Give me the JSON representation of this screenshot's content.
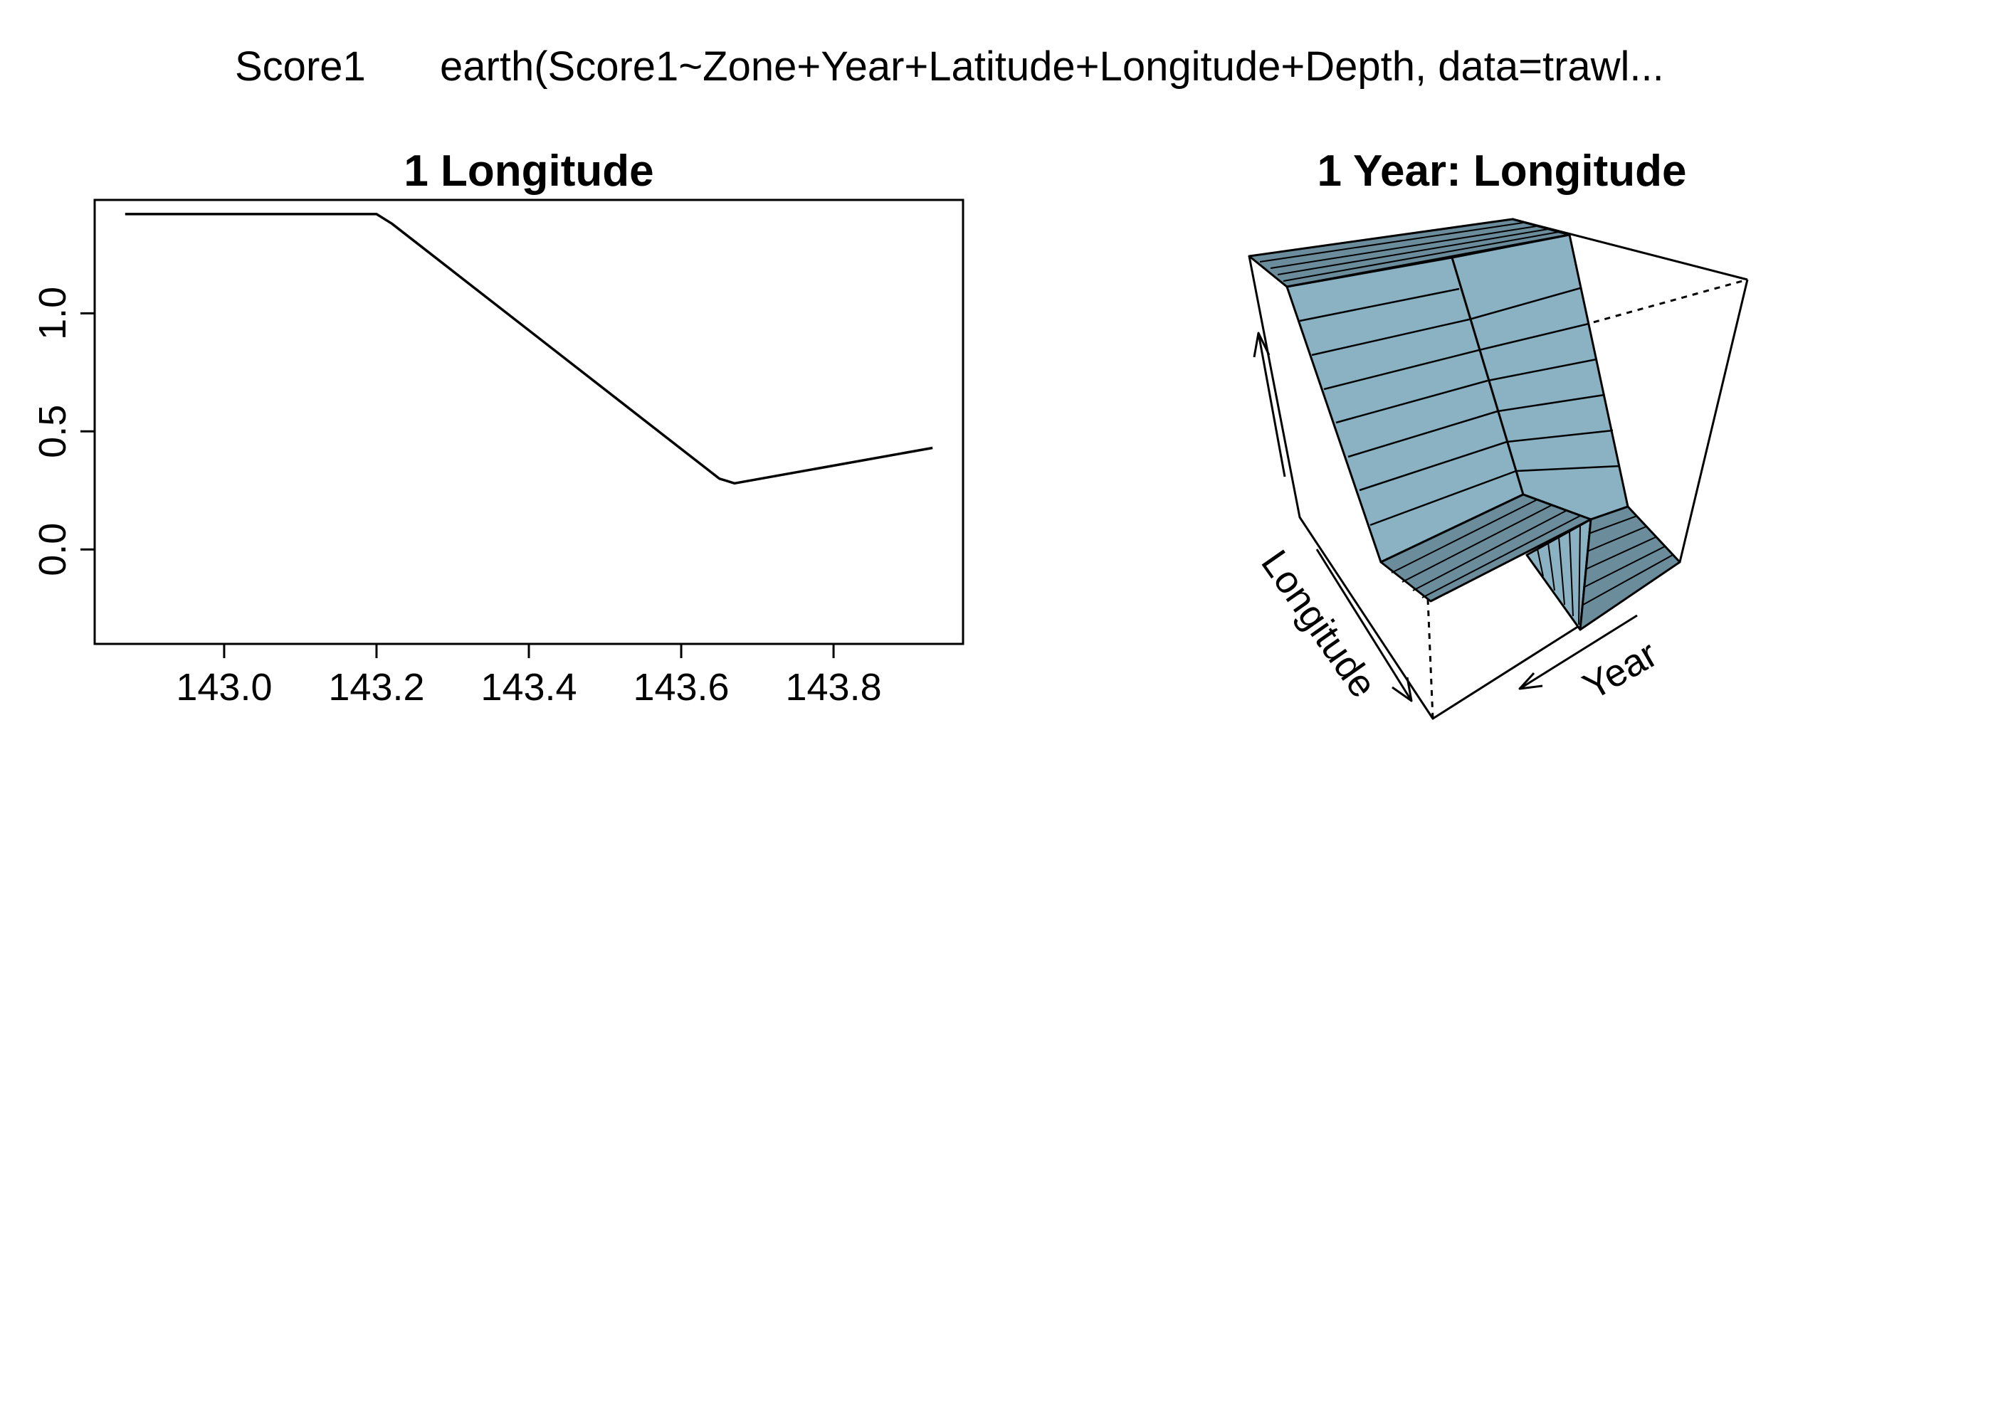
{
  "header": {
    "response": "Score1",
    "model_call": "earth(Score1~Zone+Year+Latitude+Longitude+Depth, data=trawl..."
  },
  "chart_data": [
    {
      "type": "line",
      "title": "1  Longitude",
      "xlabel": "",
      "ylabel": "",
      "xlim": [
        142.83,
        143.97
      ],
      "ylim": [
        -0.4,
        1.48
      ],
      "xticks": [
        "143.0",
        "143.2",
        "143.4",
        "143.6",
        "143.8"
      ],
      "xtick_values": [
        143.0,
        143.2,
        143.4,
        143.6,
        143.8
      ],
      "yticks": [
        "0.0",
        "0.5",
        "1.0"
      ],
      "ytick_values": [
        0.0,
        0.5,
        1.0
      ],
      "grid": false,
      "series": [
        {
          "x": [
            142.87,
            143.2,
            143.22,
            143.65,
            143.67,
            143.93
          ],
          "values": [
            1.42,
            1.42,
            1.38,
            0.3,
            0.28,
            0.43
          ]
        }
      ]
    },
    {
      "type": "surface",
      "title": "1 Year: Longitude",
      "axes": [
        "Longitude",
        "Year"
      ],
      "colors": {
        "surface": "#8ab2c3",
        "side": "#6b8c9a",
        "line": "#000000"
      }
    }
  ]
}
